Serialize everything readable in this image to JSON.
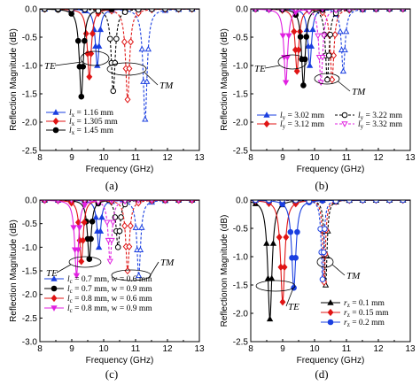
{
  "colors": {
    "blue": "#1a3fe0",
    "red": "#e01515",
    "black": "#000000",
    "magenta": "#e020e0"
  },
  "chart_data": [
    {
      "panel": "(a)",
      "type": "line",
      "xlabel": "Frequency (GHz)",
      "ylabel": "Reflection Magnitude (dB)",
      "xlim": [
        8,
        13
      ],
      "ylim": [
        -2.5,
        0
      ],
      "xticks": [
        "8",
        "9",
        "10",
        "11",
        "12",
        "13"
      ],
      "yticks": [
        "0.0",
        "-0.5",
        "-1.0",
        "-1.5",
        "-2.0",
        "-2.5"
      ],
      "annotations": [
        "TE",
        "TM"
      ],
      "series": [
        {
          "name": "l_x = 1.16 mm",
          "legend_sym": "l",
          "legend_sub": "x",
          "legend_val": " = 1.16 mm",
          "color": "blue",
          "marker": "triangle-up",
          "minima": [
            {
              "x": 9.8,
              "y": -1.0,
              "w": 0.15,
              "dash": false
            },
            {
              "x": 11.3,
              "y": -1.95,
              "w": 0.15,
              "dash": true
            }
          ]
        },
        {
          "name": "l_x = 1.305 mm",
          "legend_sym": "l",
          "legend_sub": "x",
          "legend_val": " = 1.305 mm",
          "color": "red",
          "marker": "diamond",
          "minima": [
            {
              "x": 9.55,
              "y": -1.2,
              "w": 0.15,
              "dash": false
            },
            {
              "x": 10.75,
              "y": -1.6,
              "w": 0.15,
              "dash": true
            }
          ]
        },
        {
          "name": "l_x = 1.45 mm",
          "legend_sym": "l",
          "legend_sub": "x",
          "legend_val": " = 1.45 mm",
          "color": "black",
          "marker": "circle",
          "minima": [
            {
              "x": 9.3,
              "y": -1.55,
              "w": 0.15,
              "dash": false
            },
            {
              "x": 10.3,
              "y": -1.45,
              "w": 0.15,
              "dash": true
            }
          ]
        }
      ]
    },
    {
      "panel": "(b)",
      "type": "line",
      "xlabel": "Frequency (GHz)",
      "ylabel": "Reflection Magnitude (dB)",
      "xlim": [
        8,
        13
      ],
      "ylim": [
        -2.5,
        0
      ],
      "xticks": [
        "8",
        "9",
        "10",
        "11",
        "12",
        "13"
      ],
      "yticks": [
        "0.0",
        "-0.5",
        "-1.0",
        "-1.5",
        "-2.0",
        "-2.5"
      ],
      "annotations": [
        "TE",
        "TM"
      ],
      "series": [
        {
          "name": "l_y = 3.02 mm",
          "legend_sym": "l",
          "legend_sub": "y",
          "legend_val": " = 3.02 mm",
          "color": "blue",
          "marker": "triangle-up",
          "minima": [
            {
              "x": 9.85,
              "y": -1.0,
              "w": 0.14,
              "dash": false
            },
            {
              "x": 10.9,
              "y": -1.1,
              "w": 0.14,
              "dash": true
            }
          ]
        },
        {
          "name": "l_y = 3.12 mm",
          "legend_sym": "l",
          "legend_sub": "y",
          "legend_val": " = 3.12 mm",
          "color": "red",
          "marker": "diamond",
          "minima": [
            {
              "x": 9.45,
              "y": -1.1,
              "w": 0.14,
              "dash": false
            },
            {
              "x": 10.55,
              "y": -1.25,
              "w": 0.14,
              "dash": true
            }
          ]
        },
        {
          "name": "l_y = 3.22 mm",
          "legend_sym": "l",
          "legend_sub": "y",
          "legend_val": " = 3.22 mm",
          "color": "black",
          "marker": "circle",
          "minima": [
            {
              "x": 9.65,
              "y": -1.35,
              "w": 0.14,
              "dash": false
            },
            {
              "x": 10.4,
              "y": -1.25,
              "w": 0.14,
              "dash": true
            }
          ]
        },
        {
          "name": "l_y = 3.32 mm",
          "legend_sym": "l",
          "legend_sub": "y",
          "legend_val": " = 3.32 mm",
          "color": "magenta",
          "marker": "triangle-down",
          "minima": [
            {
              "x": 9.1,
              "y": -1.3,
              "w": 0.14,
              "dash": false
            },
            {
              "x": 10.2,
              "y": -1.3,
              "w": 0.14,
              "dash": true
            }
          ]
        }
      ]
    },
    {
      "panel": "(c)",
      "type": "line",
      "xlabel": "Frequency (GHz)",
      "ylabel": "Reflection Magnitude (dB)",
      "xlim": [
        8,
        13
      ],
      "ylim": [
        -3.0,
        0
      ],
      "xticks": [
        "8",
        "9",
        "10",
        "11",
        "12",
        "13"
      ],
      "yticks": [
        "0.0",
        "-0.5",
        "-1.0",
        "-1.5",
        "-2.0",
        "-2.5",
        "-3.0"
      ],
      "annotations": [
        "TE",
        "TM"
      ],
      "series": [
        {
          "name": "l_c = 0.7 mm, w = 0.6 mm",
          "legend_sym": "l",
          "legend_sub": "c",
          "legend_val": " = 0.7 mm, w = 0.6 mm",
          "color": "blue",
          "marker": "triangle-up",
          "minima": [
            {
              "x": 9.85,
              "y": -1.0,
              "w": 0.14,
              "dash": false
            },
            {
              "x": 11.1,
              "y": -1.6,
              "w": 0.14,
              "dash": true
            }
          ]
        },
        {
          "name": "l_c = 0.7 mm, w = 0.9 mm",
          "legend_sym": "l",
          "legend_sub": "c",
          "legend_val": " = 0.7 mm, w = 0.9 mm",
          "color": "black",
          "marker": "circle",
          "minima": [
            {
              "x": 9.55,
              "y": -1.25,
              "w": 0.14,
              "dash": false
            },
            {
              "x": 10.45,
              "y": -1.0,
              "w": 0.14,
              "dash": true
            }
          ]
        },
        {
          "name": "l_c = 0.8 mm, w = 0.6 mm",
          "legend_sym": "l",
          "legend_sub": "c",
          "legend_val": " = 0.8 mm, w = 0.6 mm",
          "color": "red",
          "marker": "diamond",
          "minima": [
            {
              "x": 9.3,
              "y": -1.3,
              "w": 0.14,
              "dash": false
            },
            {
              "x": 10.75,
              "y": -1.5,
              "w": 0.14,
              "dash": true
            }
          ]
        },
        {
          "name": "l_c = 0.8 mm, w = 0.9 mm",
          "legend_sym": "l",
          "legend_sub": "c",
          "legend_val": " = 0.8 mm, w = 0.9 mm",
          "color": "magenta",
          "marker": "triangle-down",
          "minima": [
            {
              "x": 9.15,
              "y": -1.6,
              "w": 0.14,
              "dash": false
            },
            {
              "x": 10.2,
              "y": -1.3,
              "w": 0.14,
              "dash": true
            }
          ]
        }
      ]
    },
    {
      "panel": "(d)",
      "type": "line",
      "xlabel": "Frequency (GHz)",
      "ylabel": "Reflectionon Magnitude (dB)",
      "xlim": [
        8,
        13
      ],
      "ylim": [
        -2.5,
        0
      ],
      "xticks": [
        "8",
        "9",
        "10",
        "11",
        "12",
        "13"
      ],
      "yticks": [
        "0.0",
        "-0.5",
        "-1.0",
        "-1.5",
        "-2.0",
        "-2.5"
      ],
      "annotations": [
        "TE",
        "TM"
      ],
      "series": [
        {
          "name": "r_z = 0.1 mm",
          "legend_sym": "r",
          "legend_sub": "z",
          "legend_val": " = 0.1 mm",
          "color": "black",
          "marker": "triangle-up",
          "minima": [
            {
              "x": 8.6,
              "y": -2.1,
              "w": 0.16,
              "dash": false
            },
            {
              "x": 10.35,
              "y": -1.5,
              "w": 0.1,
              "dash": true
            }
          ]
        },
        {
          "name": "r_z = 0.15 mm",
          "legend_sym": "r",
          "legend_sub": "z",
          "legend_val": " = 0.15 mm",
          "color": "red",
          "marker": "diamond",
          "minima": [
            {
              "x": 9.0,
              "y": -1.8,
              "w": 0.16,
              "dash": false
            },
            {
              "x": 10.3,
              "y": -1.45,
              "w": 0.1,
              "dash": true
            }
          ]
        },
        {
          "name": "r_z = 0.2 mm",
          "legend_sym": "r",
          "legend_sub": "z",
          "legend_val": " = 0.2 mm",
          "color": "blue",
          "marker": "circle",
          "minima": [
            {
              "x": 9.35,
              "y": -1.55,
              "w": 0.16,
              "dash": false
            },
            {
              "x": 10.25,
              "y": -1.4,
              "w": 0.1,
              "dash": true
            }
          ]
        }
      ]
    }
  ]
}
